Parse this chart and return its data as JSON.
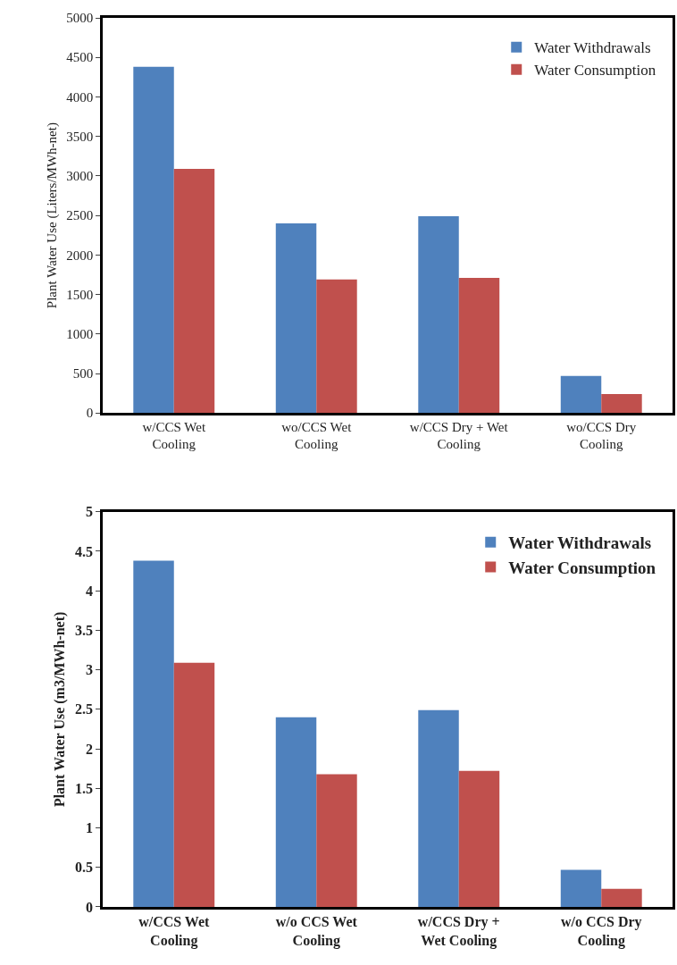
{
  "chart_data": [
    {
      "type": "bar",
      "ylabel": "Plant Water Use (Liters/MWh-net)",
      "categories": [
        "w/CCS Wet\nCooling",
        "wo/CCS Wet\nCooling",
        "w/CCS Dry + Wet\nCooling",
        "wo/CCS Dry\nCooling"
      ],
      "series": [
        {
          "name": "Water Withdrawals",
          "color": "#4f81bd",
          "values": [
            4380,
            2400,
            2490,
            470
          ]
        },
        {
          "name": "Water Consumption",
          "color": "#c0504d",
          "values": [
            3090,
            1690,
            1710,
            240
          ]
        }
      ],
      "ylim": [
        0,
        5000
      ],
      "yticks": [
        0,
        500,
        1000,
        1500,
        2000,
        2500,
        3000,
        3500,
        4000,
        4500,
        5000
      ],
      "legend": "top right"
    },
    {
      "type": "bar",
      "ylabel": "Plant Water Use (m3/MWh-net)",
      "categories": [
        "w/CCS Wet\nCooling",
        "w/o CCS Wet\nCooling",
        "w/CCS Dry +\nWet Cooling",
        "w/o CCS Dry\nCooling"
      ],
      "series": [
        {
          "name": "Water Withdrawals",
          "color": "#4f81bd",
          "values": [
            4.38,
            2.4,
            2.49,
            0.47
          ]
        },
        {
          "name": "Water Consumption",
          "color": "#c0504d",
          "values": [
            3.09,
            1.68,
            1.72,
            0.23
          ]
        }
      ],
      "ylim": [
        0,
        5
      ],
      "yticks": [
        0,
        0.5,
        1,
        1.5,
        2,
        2.5,
        3,
        3.5,
        4,
        4.5,
        5
      ],
      "legend": "top right"
    }
  ]
}
